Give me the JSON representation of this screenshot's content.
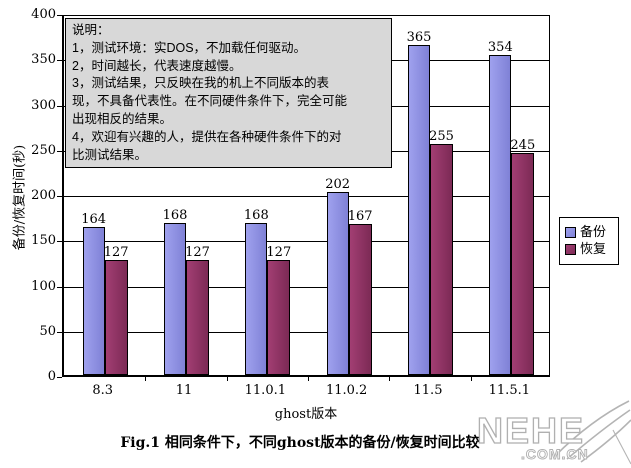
{
  "figure": {
    "caption": "Fig.1  相同条件下，不同ghost版本的备份/恢复时间比较"
  },
  "annotation": {
    "lines": [
      "说明：",
      "1，测试环境：实DOS，不加载任何驱动。",
      "2，时间越长，代表速度越慢。",
      "3，测试结果，只反映在我的机上不同版本的表",
      "现，不具备代表性。在不同硬件条件下，完全可能",
      "出现相反的结果。",
      "4，欢迎有兴趣的人，提供在各种硬件条件下的对",
      "比测试结果。"
    ]
  },
  "chart_data": {
    "type": "bar",
    "title": "",
    "categories": [
      "8.3",
      "11",
      "11.0.1",
      "11.0.2",
      "11.5",
      "11.5.1"
    ],
    "series": [
      {
        "name": "备份",
        "color_start": "#9fa1ee",
        "color_end": "#7f81d6",
        "values": [
          164,
          168,
          168,
          202,
          365,
          354
        ]
      },
      {
        "name": "恢复",
        "color_start": "#a23e73",
        "color_end": "#7c2a55",
        "values": [
          127,
          127,
          127,
          167,
          255,
          245
        ]
      }
    ],
    "xlabel": "ghost版本",
    "ylabel": "备份/恢复时间(秒)",
    "ylim": [
      0,
      400
    ],
    "ytick_step": 50,
    "grid": true,
    "legend_position": "right"
  },
  "watermark": {
    "title": "NEHE",
    "subtitle": ".COM.CN"
  },
  "colors": {
    "axis": "#000000",
    "note_bg": "#d8d8d8",
    "watermark": "#b4b4b4",
    "backup": "#9999e6",
    "restore": "#993366"
  }
}
